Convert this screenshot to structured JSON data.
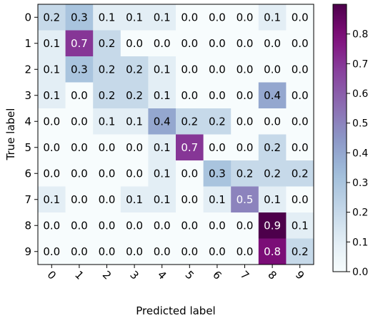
{
  "chart_data": {
    "type": "heatmap",
    "title": "",
    "xlabel": "Predicted label",
    "ylabel": "True label",
    "x_categories": [
      "0",
      "1",
      "2",
      "3",
      "4",
      "5",
      "6",
      "7",
      "8",
      "9"
    ],
    "y_categories": [
      "0",
      "1",
      "2",
      "3",
      "4",
      "5",
      "6",
      "7",
      "8",
      "9"
    ],
    "values": [
      [
        0.2,
        0.3,
        0.1,
        0.1,
        0.1,
        0.0,
        0.0,
        0.0,
        0.1,
        0.0
      ],
      [
        0.1,
        0.7,
        0.2,
        0.0,
        0.0,
        0.0,
        0.0,
        0.0,
        0.0,
        0.0
      ],
      [
        0.1,
        0.3,
        0.2,
        0.2,
        0.1,
        0.0,
        0.0,
        0.0,
        0.0,
        0.0
      ],
      [
        0.1,
        0.0,
        0.2,
        0.2,
        0.1,
        0.0,
        0.0,
        0.0,
        0.4,
        0.0
      ],
      [
        0.0,
        0.0,
        0.1,
        0.1,
        0.4,
        0.2,
        0.2,
        0.0,
        0.0,
        0.0
      ],
      [
        0.0,
        0.0,
        0.0,
        0.0,
        0.1,
        0.7,
        0.0,
        0.0,
        0.2,
        0.0
      ],
      [
        0.0,
        0.0,
        0.0,
        0.0,
        0.1,
        0.0,
        0.3,
        0.2,
        0.2,
        0.2
      ],
      [
        0.1,
        0.0,
        0.0,
        0.1,
        0.1,
        0.0,
        0.1,
        0.5,
        0.1,
        0.0
      ],
      [
        0.0,
        0.0,
        0.0,
        0.0,
        0.0,
        0.0,
        0.0,
        0.0,
        0.9,
        0.1
      ],
      [
        0.0,
        0.0,
        0.0,
        0.0,
        0.0,
        0.0,
        0.0,
        0.0,
        0.8,
        0.2
      ]
    ],
    "colorbar": {
      "range": [
        0.0,
        0.9
      ],
      "ticks": [
        "0.0",
        "0.1",
        "0.2",
        "0.3",
        "0.4",
        "0.5",
        "0.6",
        "0.7",
        "0.8"
      ]
    },
    "colormap": "BuPu",
    "grid": false,
    "x_tick_rotation_deg": 45
  }
}
